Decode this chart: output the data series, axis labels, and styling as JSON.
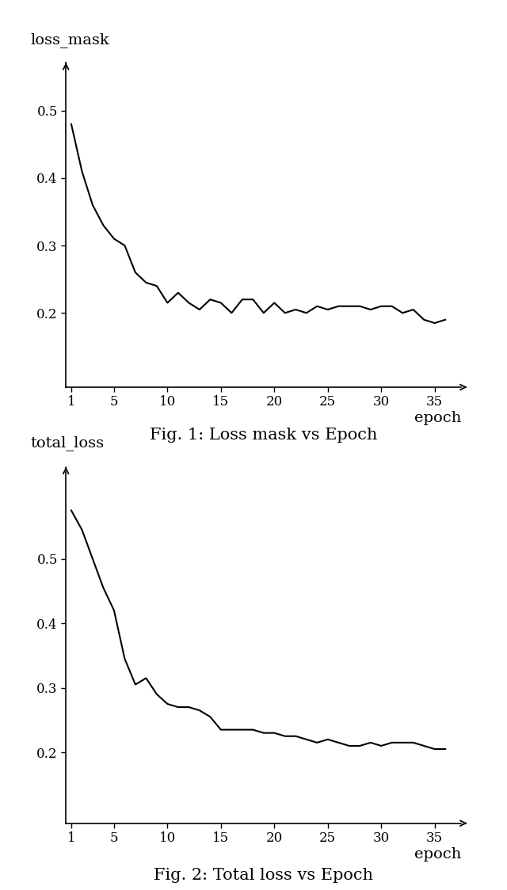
{
  "loss_mask": {
    "x": [
      1,
      2,
      3,
      4,
      5,
      6,
      7,
      8,
      9,
      10,
      11,
      12,
      13,
      14,
      15,
      16,
      17,
      18,
      19,
      20,
      21,
      22,
      23,
      24,
      25,
      26,
      27,
      28,
      29,
      30,
      31,
      32,
      33,
      34,
      35,
      36
    ],
    "y": [
      0.48,
      0.41,
      0.36,
      0.33,
      0.31,
      0.3,
      0.26,
      0.245,
      0.24,
      0.215,
      0.23,
      0.215,
      0.205,
      0.22,
      0.215,
      0.2,
      0.22,
      0.22,
      0.2,
      0.215,
      0.2,
      0.205,
      0.2,
      0.21,
      0.205,
      0.21,
      0.21,
      0.21,
      0.205,
      0.21,
      0.21,
      0.2,
      0.205,
      0.19,
      0.185,
      0.19
    ],
    "ylabel": "loss_mask",
    "xlabel": "epoch",
    "caption": "Fig. 1: Loss mask vs Epoch",
    "yticks": [
      0.2,
      0.3,
      0.4,
      0.5
    ],
    "xticks": [
      1,
      5,
      10,
      15,
      20,
      25,
      30,
      35
    ],
    "ylim": [
      0.09,
      0.565
    ],
    "xlim": [
      0.5,
      37.5
    ]
  },
  "total_loss": {
    "x": [
      1,
      2,
      3,
      4,
      5,
      6,
      7,
      8,
      9,
      10,
      11,
      12,
      13,
      14,
      15,
      16,
      17,
      18,
      19,
      20,
      21,
      22,
      23,
      24,
      25,
      26,
      27,
      28,
      29,
      30,
      31,
      32,
      33,
      34,
      35,
      36
    ],
    "y": [
      0.575,
      0.545,
      0.5,
      0.455,
      0.42,
      0.345,
      0.305,
      0.315,
      0.29,
      0.275,
      0.27,
      0.27,
      0.265,
      0.255,
      0.235,
      0.235,
      0.235,
      0.235,
      0.23,
      0.23,
      0.225,
      0.225,
      0.22,
      0.215,
      0.22,
      0.215,
      0.21,
      0.21,
      0.215,
      0.21,
      0.215,
      0.215,
      0.215,
      0.21,
      0.205,
      0.205
    ],
    "ylabel": "total_loss",
    "xlabel": "epoch",
    "caption": "Fig. 2: Total loss vs Epoch",
    "yticks": [
      0.2,
      0.3,
      0.4,
      0.5
    ],
    "xticks": [
      1,
      5,
      10,
      15,
      20,
      25,
      30,
      35
    ],
    "ylim": [
      0.09,
      0.635
    ],
    "xlim": [
      0.5,
      37.5
    ]
  },
  "line_color": "#000000",
  "bg_color": "#ffffff",
  "spine_color": "#000000",
  "tick_color": "#000000",
  "label_fontsize": 14,
  "tick_fontsize": 12,
  "caption_fontsize": 15,
  "line_width": 1.5
}
